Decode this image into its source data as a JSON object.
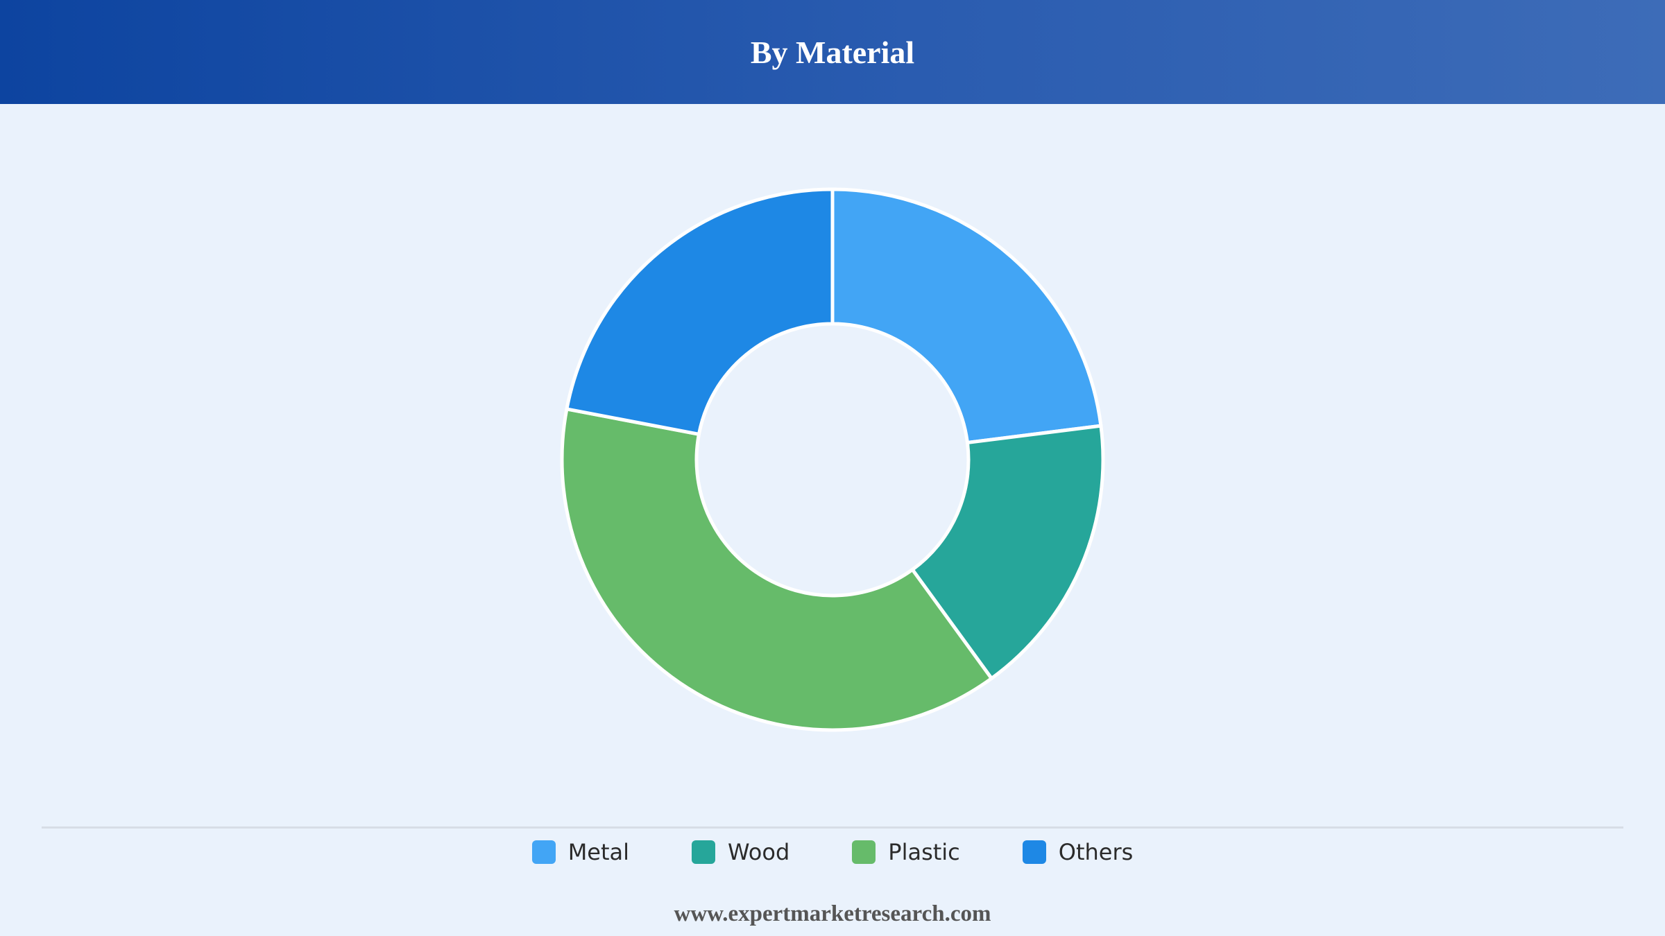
{
  "header": {
    "title": "By Material"
  },
  "chart_data": {
    "type": "pie",
    "title": "By Material",
    "donut": true,
    "categories": [
      "Metal",
      "Wood",
      "Plastic",
      "Others"
    ],
    "values": [
      23,
      17,
      38,
      22
    ],
    "colors": [
      "#42a5f5",
      "#26a69a",
      "#66bb6a",
      "#1e88e5"
    ],
    "legend_position": "bottom"
  },
  "legend": {
    "items": [
      {
        "label": "Metal",
        "color": "#42a5f5"
      },
      {
        "label": "Wood",
        "color": "#26a69a"
      },
      {
        "label": "Plastic",
        "color": "#66bb6a"
      },
      {
        "label": "Others",
        "color": "#1e88e5"
      }
    ]
  },
  "footer": {
    "source": "www.expertmarketresearch.com"
  }
}
